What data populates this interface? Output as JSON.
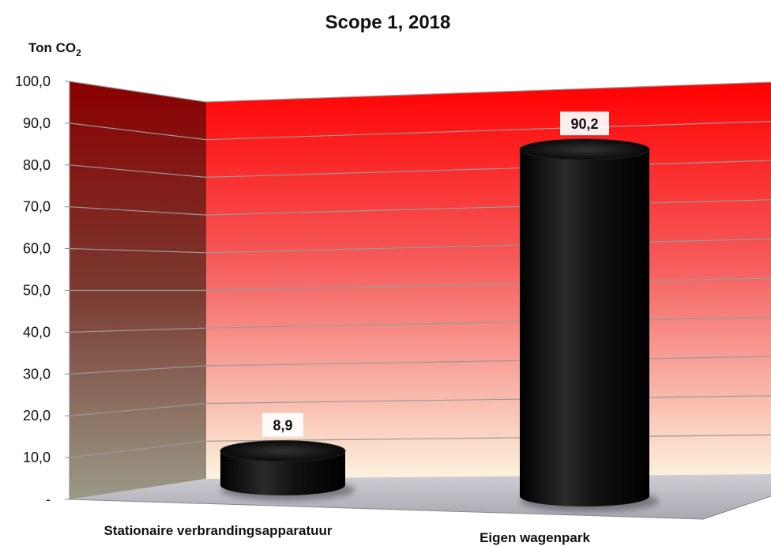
{
  "chart_data": {
    "type": "bar",
    "title": "Scope 1, 2018",
    "ylabel": "Ton CO",
    "ylabel_subscript": "2",
    "categories": [
      "Stationaire verbrandingsapparatuur",
      "Eigen wagenpark"
    ],
    "values": [
      8.9,
      90.2
    ],
    "data_labels": [
      "8,9",
      "90,2"
    ],
    "ylim": [
      0,
      100
    ],
    "yticks": [
      {
        "value": 0,
        "label": "-"
      },
      {
        "value": 10,
        "label": "10,0"
      },
      {
        "value": 20,
        "label": "20,0"
      },
      {
        "value": 30,
        "label": "30,0"
      },
      {
        "value": 40,
        "label": "40,0"
      },
      {
        "value": 50,
        "label": "50,0"
      },
      {
        "value": 60,
        "label": "60,0"
      },
      {
        "value": 70,
        "label": "70,0"
      },
      {
        "value": 80,
        "label": "80,0"
      },
      {
        "value": 90,
        "label": "90,0"
      },
      {
        "value": 100,
        "label": "100,0"
      }
    ],
    "grid": true,
    "legend": "none",
    "colors": {
      "bar": "#000000",
      "back_wall_top": "#ff0000",
      "back_wall_bottom": "#fbf3de",
      "side_wall_top": "#8a0000",
      "side_wall_bottom": "#9a9a88",
      "floor": "#b9b7c0"
    }
  }
}
